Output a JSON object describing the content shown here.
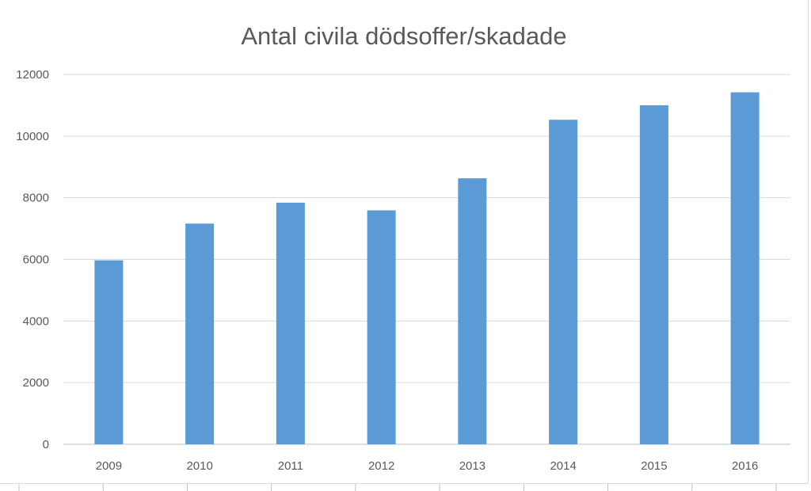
{
  "chart_data": {
    "type": "bar",
    "title": "Antal civila dödsoffer/skadade",
    "categories": [
      "2009",
      "2010",
      "2011",
      "2012",
      "2013",
      "2014",
      "2015",
      "2016"
    ],
    "series": [
      {
        "values": [
          5970,
          7160,
          7840,
          7590,
          8630,
          10530,
          11000,
          11420
        ],
        "color": "#5b9bd5"
      }
    ],
    "ylim": [
      0,
      12000
    ],
    "yticks": [
      0,
      2000,
      4000,
      6000,
      8000,
      10000,
      12000
    ],
    "grid": true,
    "legend": "none"
  }
}
